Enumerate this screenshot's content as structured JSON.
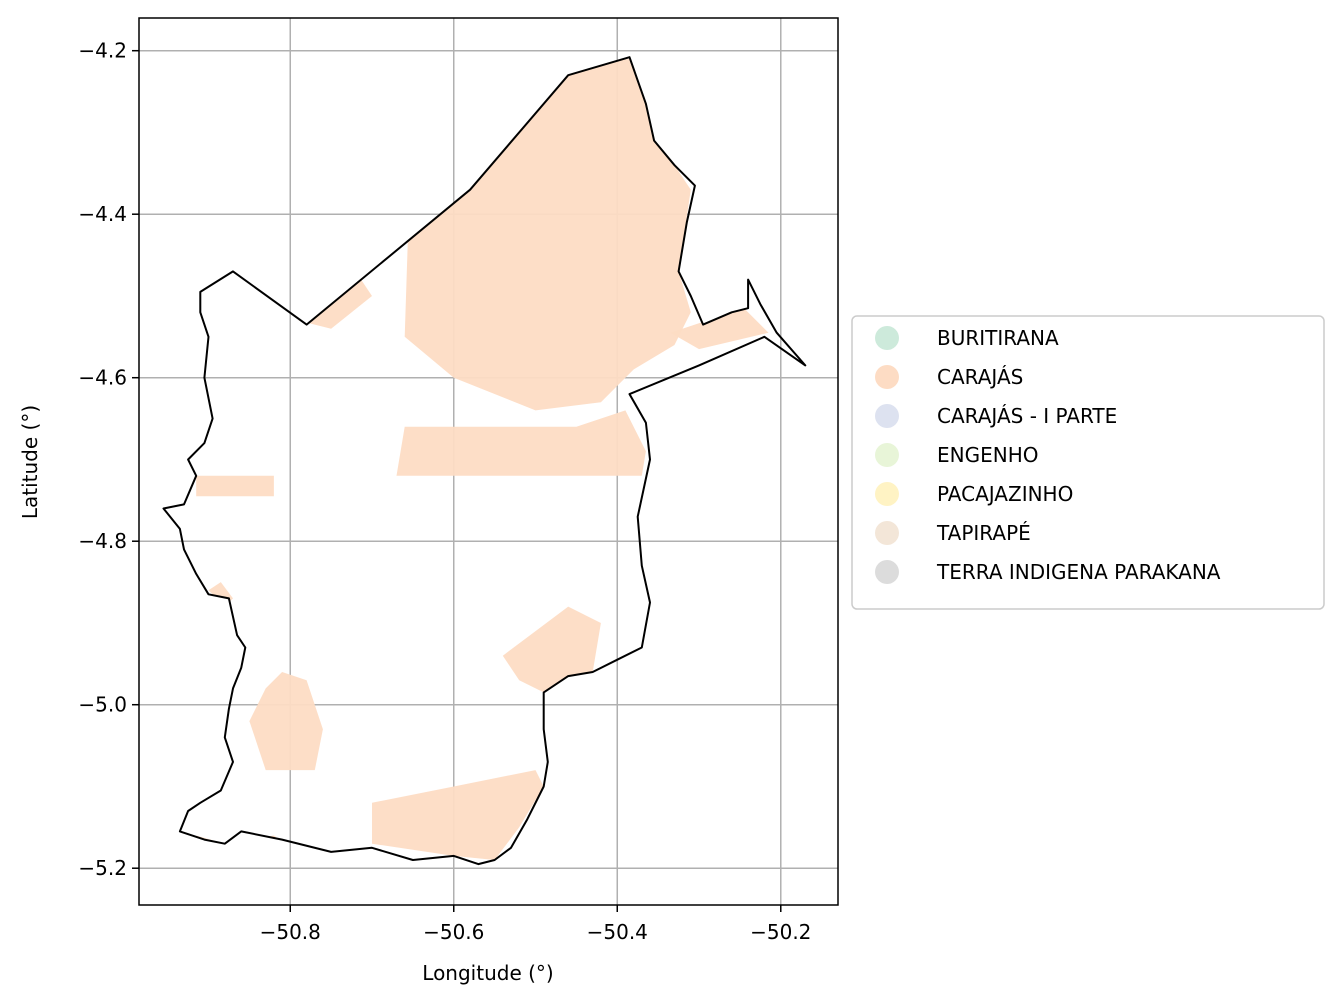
{
  "chart_data": {
    "type": "map",
    "xlabel": "Longitude (°)",
    "ylabel": "Latitude (°)",
    "xlim": [
      -50.985,
      -50.13
    ],
    "ylim": [
      -5.245,
      -4.16
    ],
    "x_ticks": [
      -50.8,
      -50.6,
      -50.4,
      -50.2
    ],
    "x_tick_labels": [
      "−50.8",
      "−50.6",
      "−50.4",
      "−50.2"
    ],
    "y_ticks": [
      -4.2,
      -4.4,
      -4.6,
      -4.8,
      -5.0,
      -5.2
    ],
    "y_tick_labels": [
      "−4.2",
      "−4.4",
      "−4.6",
      "−4.8",
      "−5.0",
      "−5.2"
    ],
    "grid": true,
    "legend_position": "center-right outside",
    "legend": [
      {
        "label": "BURITIRANA",
        "color": "#cdeadb"
      },
      {
        "label": "CARAJÁS",
        "color": "#fddcc4"
      },
      {
        "label": "CARAJÁS - I PARTE",
        "color": "#dde2f0"
      },
      {
        "label": "ENGENHO",
        "color": "#e8f5d8"
      },
      {
        "label": "PACAJAZINHO",
        "color": "#fff3c4"
      },
      {
        "label": "TAPIRAPÉ",
        "color": "#f3e6d8"
      },
      {
        "label": "TERRA INDIGENA PARAKANA",
        "color": "#dcdcdc"
      }
    ],
    "boundary": [
      [
        -50.91,
        -4.495
      ],
      [
        -50.87,
        -4.47
      ],
      [
        -50.78,
        -4.535
      ],
      [
        -50.58,
        -4.37
      ],
      [
        -50.46,
        -4.23
      ],
      [
        -50.385,
        -4.208
      ],
      [
        -50.365,
        -4.265
      ],
      [
        -50.355,
        -4.31
      ],
      [
        -50.33,
        -4.34
      ],
      [
        -50.305,
        -4.365
      ],
      [
        -50.315,
        -4.41
      ],
      [
        -50.325,
        -4.47
      ],
      [
        -50.31,
        -4.5
      ],
      [
        -50.295,
        -4.535
      ],
      [
        -50.26,
        -4.52
      ],
      [
        -50.24,
        -4.515
      ],
      [
        -50.24,
        -4.48
      ],
      [
        -50.225,
        -4.51
      ],
      [
        -50.205,
        -4.545
      ],
      [
        -50.17,
        -4.585
      ],
      [
        -50.22,
        -4.55
      ],
      [
        -50.3,
        -4.585
      ],
      [
        -50.385,
        -4.62
      ],
      [
        -50.365,
        -4.655
      ],
      [
        -50.36,
        -4.7
      ],
      [
        -50.375,
        -4.77
      ],
      [
        -50.37,
        -4.83
      ],
      [
        -50.36,
        -4.875
      ],
      [
        -50.37,
        -4.93
      ],
      [
        -50.4,
        -4.945
      ],
      [
        -50.43,
        -4.96
      ],
      [
        -50.46,
        -4.965
      ],
      [
        -50.49,
        -4.985
      ],
      [
        -50.49,
        -5.03
      ],
      [
        -50.485,
        -5.07
      ],
      [
        -50.49,
        -5.1
      ],
      [
        -50.51,
        -5.14
      ],
      [
        -50.53,
        -5.175
      ],
      [
        -50.55,
        -5.19
      ],
      [
        -50.57,
        -5.195
      ],
      [
        -50.6,
        -5.185
      ],
      [
        -50.65,
        -5.19
      ],
      [
        -50.7,
        -5.175
      ],
      [
        -50.75,
        -5.18
      ],
      [
        -50.81,
        -5.165
      ],
      [
        -50.86,
        -5.155
      ],
      [
        -50.88,
        -5.17
      ],
      [
        -50.905,
        -5.165
      ],
      [
        -50.935,
        -5.155
      ],
      [
        -50.925,
        -5.13
      ],
      [
        -50.91,
        -5.12
      ],
      [
        -50.885,
        -5.105
      ],
      [
        -50.87,
        -5.07
      ],
      [
        -50.88,
        -5.04
      ],
      [
        -50.875,
        -5.005
      ],
      [
        -50.87,
        -4.98
      ],
      [
        -50.86,
        -4.955
      ],
      [
        -50.855,
        -4.93
      ],
      [
        -50.865,
        -4.915
      ],
      [
        -50.875,
        -4.87
      ],
      [
        -50.9,
        -4.865
      ],
      [
        -50.915,
        -4.84
      ],
      [
        -50.93,
        -4.81
      ],
      [
        -50.935,
        -4.785
      ],
      [
        -50.955,
        -4.76
      ],
      [
        -50.93,
        -4.755
      ],
      [
        -50.915,
        -4.72
      ],
      [
        -50.925,
        -4.7
      ],
      [
        -50.905,
        -4.68
      ],
      [
        -50.895,
        -4.65
      ],
      [
        -50.905,
        -4.6
      ],
      [
        -50.9,
        -4.55
      ],
      [
        -50.91,
        -4.52
      ],
      [
        -50.91,
        -4.495
      ]
    ],
    "carajas_regions": [
      [
        [
          -50.655,
          -4.395
        ],
        [
          -50.6,
          -4.35
        ],
        [
          -50.53,
          -4.29
        ],
        [
          -50.455,
          -4.22
        ],
        [
          -50.385,
          -4.21
        ],
        [
          -50.365,
          -4.265
        ],
        [
          -50.355,
          -4.31
        ],
        [
          -50.33,
          -4.34
        ],
        [
          -50.31,
          -4.37
        ],
        [
          -50.325,
          -4.47
        ],
        [
          -50.31,
          -4.52
        ],
        [
          -50.33,
          -4.56
        ],
        [
          -50.38,
          -4.59
        ],
        [
          -50.42,
          -4.63
        ],
        [
          -50.5,
          -4.64
        ],
        [
          -50.6,
          -4.6
        ],
        [
          -50.66,
          -4.55
        ]
      ],
      [
        [
          -50.555,
          -4.66
        ],
        [
          -50.45,
          -4.66
        ],
        [
          -50.39,
          -4.64
        ],
        [
          -50.365,
          -4.69
        ],
        [
          -50.37,
          -4.72
        ],
        [
          -50.67,
          -4.72
        ],
        [
          -50.66,
          -4.66
        ]
      ],
      [
        [
          -50.915,
          -4.72
        ],
        [
          -50.82,
          -4.72
        ],
        [
          -50.82,
          -4.745
        ],
        [
          -50.915,
          -4.745
        ]
      ],
      [
        [
          -50.885,
          -4.85
        ],
        [
          -50.87,
          -4.87
        ],
        [
          -50.88,
          -4.88
        ],
        [
          -50.9,
          -4.86
        ]
      ],
      [
        [
          -50.54,
          -4.94
        ],
        [
          -50.46,
          -4.88
        ],
        [
          -50.42,
          -4.9
        ],
        [
          -50.43,
          -4.96
        ],
        [
          -50.49,
          -4.985
        ],
        [
          -50.52,
          -4.97
        ]
      ],
      [
        [
          -50.81,
          -4.96
        ],
        [
          -50.78,
          -4.97
        ],
        [
          -50.76,
          -5.03
        ],
        [
          -50.77,
          -5.08
        ],
        [
          -50.83,
          -5.08
        ],
        [
          -50.85,
          -5.02
        ],
        [
          -50.83,
          -4.98
        ]
      ],
      [
        [
          -50.7,
          -5.12
        ],
        [
          -50.6,
          -5.1
        ],
        [
          -50.5,
          -5.08
        ],
        [
          -50.49,
          -5.1
        ],
        [
          -50.52,
          -5.15
        ],
        [
          -50.55,
          -5.19
        ],
        [
          -50.6,
          -5.185
        ],
        [
          -50.7,
          -5.17
        ]
      ],
      [
        [
          -50.915,
          -5.16
        ],
        [
          -50.88,
          -5.17
        ],
        [
          -50.82,
          -5.16
        ],
        [
          -50.8,
          -5.175
        ],
        [
          -50.87,
          -5.18
        ],
        [
          -50.9,
          -5.18
        ]
      ],
      [
        [
          -50.79,
          -4.53
        ],
        [
          -50.72,
          -4.47
        ],
        [
          -50.7,
          -4.5
        ],
        [
          -50.75,
          -4.54
        ]
      ],
      [
        [
          -50.335,
          -4.545
        ],
        [
          -50.245,
          -4.515
        ],
        [
          -50.215,
          -4.545
        ],
        [
          -50.3,
          -4.565
        ]
      ]
    ]
  }
}
